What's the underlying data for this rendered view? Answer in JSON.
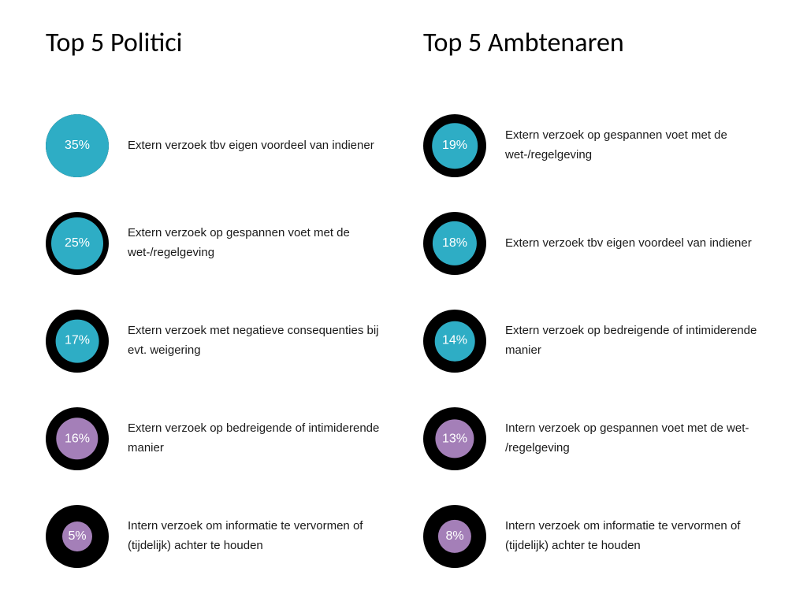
{
  "left": {
    "title": "Top 5 Politici",
    "items": [
      {
        "pct": "35%",
        "text": "Extern verzoek tbv eigen voordeel van indiener"
      },
      {
        "pct": "25%",
        "text": "Extern verzoek op gespannen voet met de wet-/regelgeving"
      },
      {
        "pct": "17%",
        "text": "Extern verzoek met negatieve consequenties bij evt. weigering"
      },
      {
        "pct": "16%",
        "text": "Extern verzoek op bedreigende of intimiderende manier"
      },
      {
        "pct": "5%",
        "text": "Intern verzoek om informatie te vervormen of (tijdelijk) achter te houden"
      }
    ]
  },
  "right": {
    "title": "Top 5 Ambtenaren",
    "items": [
      {
        "pct": "19%",
        "text": "Extern verzoek op gespannen voet met de wet-/regelgeving"
      },
      {
        "pct": "18%",
        "text": "Extern verzoek tbv eigen voordeel van indiener"
      },
      {
        "pct": "14%",
        "text": "Extern verzoek op bedreigende of intimiderende manier"
      },
      {
        "pct": "13%",
        "text": "Intern verzoek op gespannen voet met de wet- /regelgeving"
      },
      {
        "pct": "8%",
        "text": "Intern verzoek om informatie te vervormen of (tijdelijk) achter te houden"
      }
    ]
  },
  "style": {
    "circle_colors": [
      "#2eadc5",
      "#2eadc5",
      "#2eadc5",
      "#a47fb8",
      "#a47fb8"
    ],
    "circle_min_diameter": 38,
    "circle_max_diameter": 80,
    "shadow_diameter": 80,
    "pct_max_ref": 35,
    "pct_min_ref": 5
  }
}
